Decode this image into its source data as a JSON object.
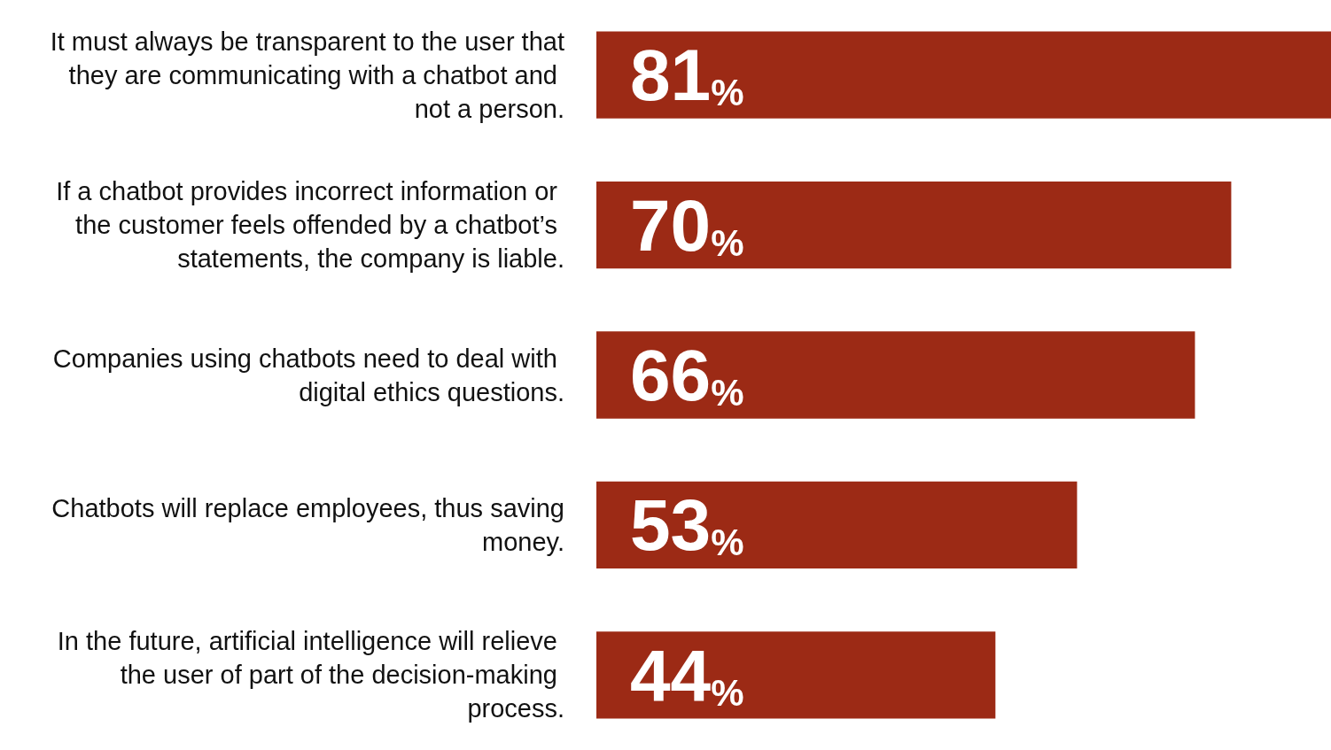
{
  "chart_data": {
    "type": "bar",
    "orientation": "horizontal",
    "categories": [
      "It must always be transparent to the user that they are communicating with a chatbot and not a person.",
      "If a chatbot provides incorrect information or the customer feels offended by a chatbot’s statements, the company is liable.",
      "Companies using chatbots need to deal with digital ethics questions.",
      "Chatbots will replace employees, thus saving money.",
      "In the future, artificial intelligence will relieve the user of part of the decision-making process."
    ],
    "values": [
      81,
      70,
      66,
      53,
      44
    ],
    "value_labels": [
      "81%",
      "70%",
      "66%",
      "53%",
      "44%"
    ],
    "color": "#9c2a15",
    "grid": false
  }
}
